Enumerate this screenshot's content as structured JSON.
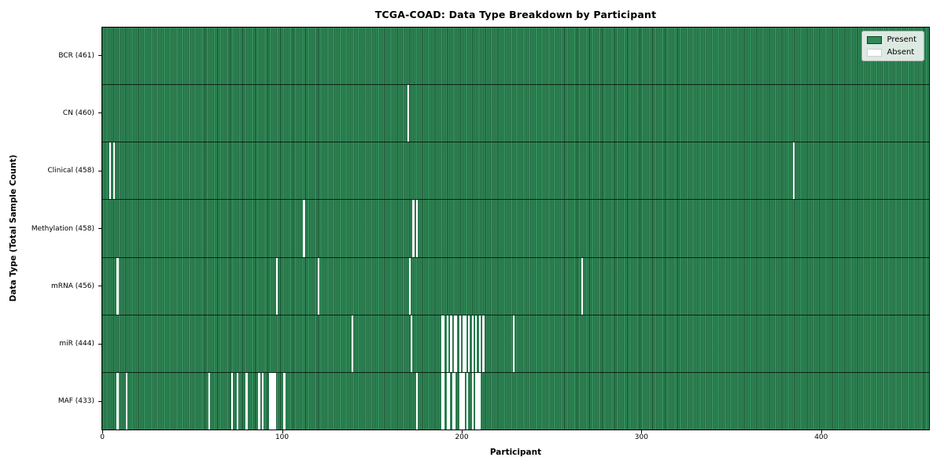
{
  "chart_data": {
    "type": "heatmap",
    "title": "TCGA-COAD: Data Type Breakdown by Participant",
    "xlabel": "Participant",
    "ylabel": "Data Type (Total Sample Count)",
    "n_participants": 461,
    "x_ticks": [
      0,
      100,
      200,
      300,
      400
    ],
    "grid": false,
    "legend_position": "upper right",
    "legend": [
      {
        "label": "Present",
        "color": "#2e8b57"
      },
      {
        "label": "Absent",
        "color": "#ffffff"
      }
    ],
    "colors": {
      "present": "#2e8b57",
      "absent": "#ffffff",
      "bar_edge": "rgba(0,0,0,0.5)"
    },
    "rows": [
      {
        "data_type": "BCR",
        "label": "BCR (461)",
        "total": 461,
        "absent_participants": []
      },
      {
        "data_type": "CN",
        "label": "CN (460)",
        "total": 460,
        "absent_participants": [
          170
        ]
      },
      {
        "data_type": "Clinical",
        "label": "Clinical (458)",
        "total": 458,
        "absent_participants": [
          4,
          6,
          385
        ]
      },
      {
        "data_type": "Methylation",
        "label": "Methylation (458)",
        "total": 458,
        "absent_participants": [
          112,
          173,
          175
        ]
      },
      {
        "data_type": "mRNA",
        "label": "mRNA (456)",
        "total": 456,
        "absent_participants": [
          8,
          97,
          120,
          171,
          267
        ]
      },
      {
        "data_type": "miR",
        "label": "miR (444)",
        "total": 444,
        "absent_participants": [
          139,
          172,
          189,
          190,
          192,
          194,
          196,
          197,
          199,
          201,
          202,
          204,
          206,
          208,
          210,
          212,
          229
        ]
      },
      {
        "data_type": "MAF",
        "label": "MAF (433)",
        "total": 433,
        "absent_participants": [
          8,
          13,
          59,
          72,
          75,
          80,
          87,
          89,
          93,
          94,
          95,
          96,
          101,
          175,
          189,
          190,
          192,
          193,
          195,
          196,
          199,
          200,
          201,
          203,
          206,
          208,
          209,
          210
        ]
      }
    ]
  }
}
